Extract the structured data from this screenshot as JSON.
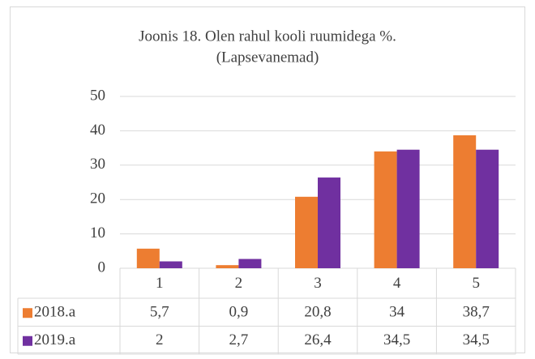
{
  "chart_data": {
    "type": "bar",
    "title": "Joonis 18. Olen rahul kooli ruumidega %.",
    "subtitle": "(Lapsevanemad)",
    "categories": [
      "1",
      "2",
      "3",
      "4",
      "5"
    ],
    "series": [
      {
        "name": "2018.a",
        "color": "#ed7d31",
        "values": [
          5.7,
          0.9,
          20.8,
          34,
          38.7
        ],
        "value_labels": [
          "5,7",
          "0,9",
          "20,8",
          "34",
          "38,7"
        ]
      },
      {
        "name": "2019.a",
        "color": "#7030a0",
        "values": [
          2,
          2.7,
          26.4,
          34.5,
          34.5
        ],
        "value_labels": [
          "2",
          "2,7",
          "26,4",
          "34,5",
          "34,5"
        ]
      }
    ],
    "ylim": [
      0,
      50
    ],
    "yticks": [
      0,
      10,
      20,
      30,
      40,
      50
    ],
    "grid": true
  }
}
